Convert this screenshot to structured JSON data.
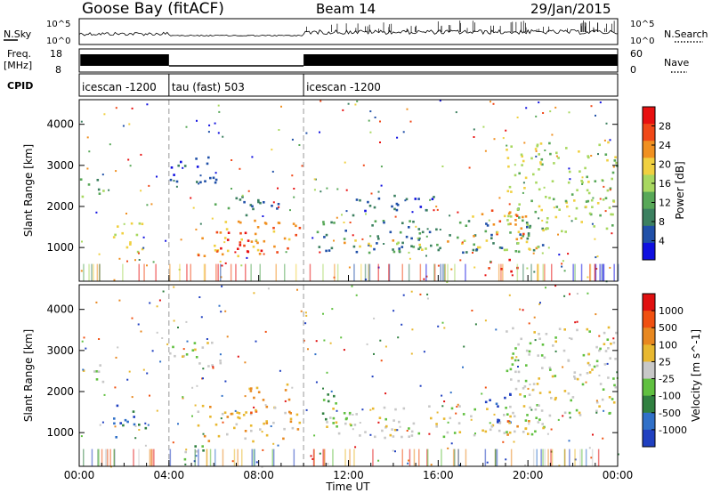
{
  "header": {
    "station": "Goose Bay (fitACF)",
    "beam": "Beam 14",
    "date": "29/Jan/2015"
  },
  "strips": {
    "nsky_label": "N.Sky",
    "nsky_ticks": [
      "10^5",
      "10^0"
    ],
    "nsearch_label": "N.Search",
    "nsearch_ticks": [
      "10^5",
      "10^0"
    ],
    "freq_label_1": "Freq.",
    "freq_label_2": "[MHz]",
    "freq_ticks": [
      "18",
      "8"
    ],
    "nave_label": "Nave",
    "nave_ticks": [
      "60",
      "0"
    ],
    "cpid_label": "CPID",
    "cpid_segments": [
      {
        "label": "icescan -1200",
        "start": 0.0,
        "end": 4.0
      },
      {
        "label": "tau (fast) 503",
        "start": 4.0,
        "end": 10.0
      },
      {
        "label": "icescan -1200",
        "start": 10.0,
        "end": 24.0
      }
    ]
  },
  "colors": {
    "power_scale": [
      "#1010e0",
      "#2050a8",
      "#3c8060",
      "#58a858",
      "#a8d860",
      "#f0d040",
      "#f09020",
      "#f04818",
      "#e81010"
    ],
    "velocity_scale": [
      "#2040c0",
      "#3070c8",
      "#308040",
      "#60c040",
      "#c8c8c8",
      "#e8b830",
      "#e88820",
      "#f05010",
      "#e01010"
    ]
  },
  "chart_data": [
    {
      "type": "heatmap",
      "title": "",
      "xlabel": "Time UT",
      "ylabel": "Slant Range [km]",
      "xlim": [
        0,
        24
      ],
      "ylim": [
        180,
        4600
      ],
      "x_ticks": [
        "00:00",
        "04:00",
        "08:00",
        "12:00",
        "16:00",
        "20:00",
        "00:00"
      ],
      "y_ticks": [
        "1000",
        "2000",
        "3000",
        "4000"
      ],
      "y_tick_values": [
        1000,
        2000,
        3000,
        4000
      ],
      "colorbar_label": "Power [dB]",
      "colorbar_ticks": [
        "28",
        "24",
        "20",
        "16",
        "12",
        "8",
        "4"
      ],
      "colorbar_range": [
        0,
        32
      ],
      "regions": [
        {
          "t0": 0.0,
          "t1": 1.3,
          "r0": 2200,
          "r1": 2700,
          "level": 3
        },
        {
          "t0": 1.5,
          "t1": 3.0,
          "r0": 900,
          "r1": 1700,
          "level": 5
        },
        {
          "t0": 4.0,
          "t1": 6.3,
          "r0": 2600,
          "r1": 3300,
          "level": 1
        },
        {
          "t0": 5.2,
          "t1": 9.8,
          "r0": 800,
          "r1": 1700,
          "level": 6
        },
        {
          "t0": 6.2,
          "t1": 8.2,
          "r0": 900,
          "r1": 1400,
          "level": 8
        },
        {
          "t0": 6.0,
          "t1": 9.0,
          "r0": 1800,
          "r1": 2300,
          "level": 2
        },
        {
          "t0": 10.5,
          "t1": 21.0,
          "r0": 900,
          "r1": 1700,
          "level": 2
        },
        {
          "t0": 11.5,
          "t1": 20.5,
          "r0": 950,
          "r1": 1200,
          "level": 5
        },
        {
          "t0": 17.5,
          "t1": 20.0,
          "r0": 1200,
          "r1": 2000,
          "level": 6
        },
        {
          "t0": 18.2,
          "t1": 19.5,
          "r0": 400,
          "r1": 800,
          "level": 8
        },
        {
          "t0": 19.0,
          "t1": 24.0,
          "r0": 1400,
          "r1": 3600,
          "level": 4
        },
        {
          "t0": 12.0,
          "t1": 16.0,
          "r0": 1800,
          "r1": 2300,
          "level": 1
        }
      ]
    },
    {
      "type": "heatmap",
      "title": "",
      "xlabel": "Time UT",
      "ylabel": "Slant Range [km]",
      "xlim": [
        0,
        24
      ],
      "ylim": [
        180,
        4600
      ],
      "x_ticks": [
        "00:00",
        "04:00",
        "08:00",
        "12:00",
        "16:00",
        "20:00",
        "00:00"
      ],
      "y_ticks": [
        "1000",
        "2000",
        "3000",
        "4000"
      ],
      "y_tick_values": [
        1000,
        2000,
        3000,
        4000
      ],
      "colorbar_label": "Velocity [m s^-1]",
      "colorbar_ticks": [
        "1000",
        "500",
        "100",
        "25",
        "-25",
        "-100",
        "-500",
        "-1000"
      ],
      "regions": [
        {
          "t0": 0.0,
          "t1": 1.3,
          "r0": 2200,
          "r1": 2700,
          "level": 4
        },
        {
          "t0": 1.5,
          "t1": 3.0,
          "r0": 900,
          "r1": 1700,
          "level": 1
        },
        {
          "t0": 4.0,
          "t1": 6.3,
          "r0": 2600,
          "r1": 3300,
          "level": 4
        },
        {
          "t0": 5.2,
          "t1": 9.8,
          "r0": 800,
          "r1": 1700,
          "level": 5
        },
        {
          "t0": 7.5,
          "t1": 9.5,
          "r0": 1500,
          "r1": 2200,
          "level": 6
        },
        {
          "t0": 4.5,
          "t1": 5.5,
          "r0": 300,
          "r1": 800,
          "level": 3
        },
        {
          "t0": 10.5,
          "t1": 21.0,
          "r0": 900,
          "r1": 1700,
          "level": 4
        },
        {
          "t0": 17.8,
          "t1": 19.2,
          "r0": 1200,
          "r1": 2000,
          "level": 0
        },
        {
          "t0": 19.0,
          "t1": 20.0,
          "r0": 900,
          "r1": 1400,
          "level": 6
        },
        {
          "t0": 19.0,
          "t1": 24.0,
          "r0": 1400,
          "r1": 3600,
          "level": 4
        },
        {
          "t0": 10.8,
          "t1": 12.0,
          "r0": 1200,
          "r1": 2000,
          "level": 3
        }
      ]
    }
  ]
}
